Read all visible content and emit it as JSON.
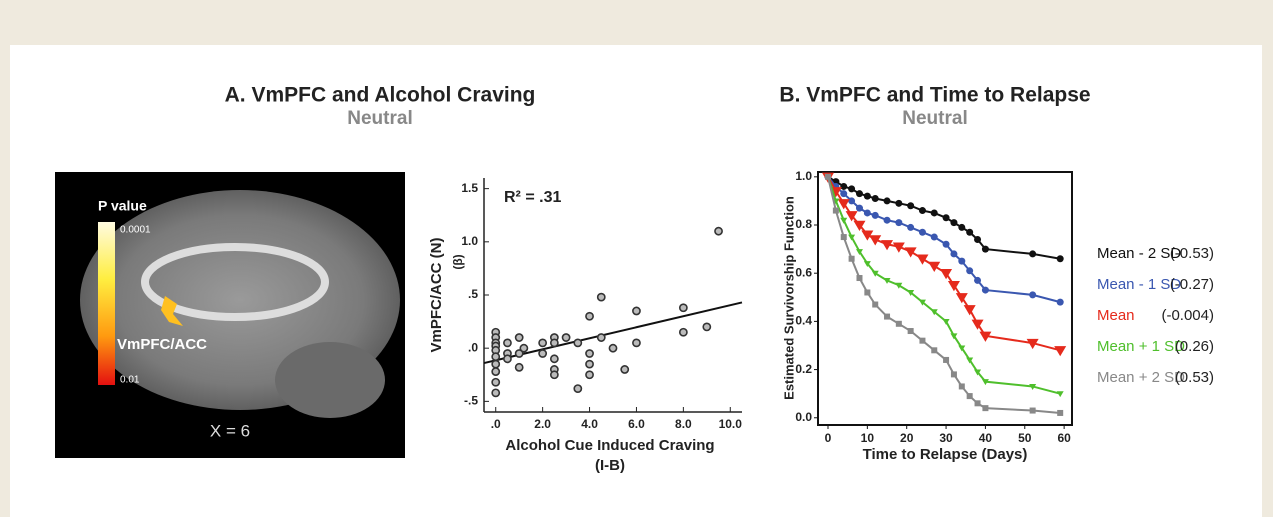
{
  "brain_image": {
    "colorbar_title": "P value",
    "colorbar_top": "0.0001",
    "colorbar_bottom": "0.01",
    "region_label": "VmPFC/ACC",
    "slice_label": "X = 6"
  },
  "chart_data": [
    {
      "type": "scatter",
      "title": "A. VmPFC and Alcohol Craving",
      "subtitle": "Neutral",
      "x_label": "Alcohol Cue Induced Craving",
      "x_label_sub": "(I-B)",
      "y_label": "VmPFC/ACC  (N)",
      "y_label_sub": "(β)",
      "annotation": "R² = .31",
      "color": "#333333",
      "x": [
        0,
        0,
        0,
        0,
        0,
        0,
        0,
        0,
        0,
        0,
        0.5,
        0.5,
        0.5,
        1,
        1,
        1,
        1.2,
        2,
        2,
        2.5,
        2.5,
        2.5,
        2.5,
        2.5,
        3,
        3.5,
        3.5,
        4,
        4,
        4,
        4,
        4.5,
        4.5,
        5,
        5.5,
        6,
        6,
        8,
        8,
        9,
        9.5
      ],
      "values": [
        0.15,
        0.1,
        0.05,
        0.02,
        -0.02,
        -0.08,
        -0.15,
        -0.22,
        -0.32,
        -0.42,
        0.05,
        -0.05,
        -0.1,
        0.1,
        -0.05,
        -0.18,
        0.0,
        0.05,
        -0.05,
        0.1,
        -0.1,
        -0.2,
        -0.25,
        0.05,
        0.1,
        0.05,
        -0.38,
        0.3,
        -0.15,
        -0.25,
        -0.05,
        0.48,
        0.1,
        0.0,
        -0.2,
        0.35,
        0.05,
        0.38,
        0.15,
        0.2,
        1.1
      ],
      "fit_line": {
        "x": [
          -0.5,
          10.5
        ],
        "y": [
          -0.14,
          0.43
        ]
      },
      "xlim": [
        -0.5,
        10.5
      ],
      "ylim": [
        -0.6,
        1.6
      ],
      "xticks": [
        {
          "value": 0,
          "label": ".0"
        },
        {
          "value": 2,
          "label": "2.0"
        },
        {
          "value": 4,
          "label": "4.0"
        },
        {
          "value": 6,
          "label": "6.0"
        },
        {
          "value": 8,
          "label": "8.0"
        },
        {
          "value": 10,
          "label": "10.0"
        }
      ],
      "yticks": [
        {
          "value": -0.5,
          "label": "-.5"
        },
        {
          "value": 0,
          "label": ".0"
        },
        {
          "value": 0.5,
          "label": ".5"
        },
        {
          "value": 1,
          "label": "1.0"
        },
        {
          "value": 1.5,
          "label": "1.5"
        }
      ]
    },
    {
      "type": "line",
      "title": "B. VmPFC and Time to Relapse",
      "subtitle": "Neutral",
      "x_label": "Time to Relapse (Days)",
      "y_label": "Estimated Survivorship Function",
      "x": [
        0,
        2,
        4,
        6,
        8,
        10,
        12,
        15,
        18,
        21,
        24,
        27,
        30,
        32,
        34,
        36,
        38,
        40,
        52,
        59
      ],
      "series": [
        {
          "name": "Mean - 2 SD",
          "legend_value": "(-0.53)",
          "color": "#111111",
          "marker": "circle",
          "values": [
            1.0,
            0.98,
            0.96,
            0.95,
            0.93,
            0.92,
            0.91,
            0.9,
            0.89,
            0.88,
            0.86,
            0.85,
            0.83,
            0.81,
            0.79,
            0.77,
            0.74,
            0.7,
            0.68,
            0.66
          ]
        },
        {
          "name": "Mean - 1 SD",
          "legend_value": "(-0.27)",
          "color": "#3a57b0",
          "marker": "circle",
          "values": [
            1.0,
            0.96,
            0.93,
            0.9,
            0.87,
            0.85,
            0.84,
            0.82,
            0.81,
            0.79,
            0.77,
            0.75,
            0.72,
            0.68,
            0.65,
            0.61,
            0.57,
            0.53,
            0.51,
            0.48
          ]
        },
        {
          "name": "Mean",
          "legend_value": "(-0.004)",
          "color": "#e52a1c",
          "marker": "triangle",
          "values": [
            1.0,
            0.94,
            0.89,
            0.84,
            0.8,
            0.76,
            0.74,
            0.72,
            0.71,
            0.69,
            0.66,
            0.63,
            0.6,
            0.55,
            0.5,
            0.45,
            0.39,
            0.34,
            0.31,
            0.28
          ]
        },
        {
          "name": "Mean  + 1 SD",
          "legend_value": "(0.26)",
          "color": "#4fbf2c",
          "marker": "small-triangle",
          "values": [
            1.0,
            0.9,
            0.82,
            0.75,
            0.69,
            0.64,
            0.6,
            0.57,
            0.55,
            0.52,
            0.48,
            0.44,
            0.4,
            0.34,
            0.29,
            0.24,
            0.19,
            0.15,
            0.13,
            0.1
          ]
        },
        {
          "name": "Mean  + 2 SD",
          "legend_value": "(0.53)",
          "color": "#888888",
          "marker": "square",
          "values": [
            1.0,
            0.86,
            0.75,
            0.66,
            0.58,
            0.52,
            0.47,
            0.42,
            0.39,
            0.36,
            0.32,
            0.28,
            0.24,
            0.18,
            0.13,
            0.09,
            0.06,
            0.04,
            0.03,
            0.02
          ]
        }
      ],
      "xlim": [
        0,
        62
      ],
      "ylim": [
        -0.03,
        1.02
      ],
      "xticks": [
        0,
        10,
        20,
        30,
        40,
        50,
        60
      ],
      "yticks": [
        {
          "value": 0,
          "label": "0.0"
        },
        0.2,
        0.4,
        0.6,
        0.8,
        {
          "value": 1,
          "label": "1.0"
        }
      ]
    }
  ]
}
